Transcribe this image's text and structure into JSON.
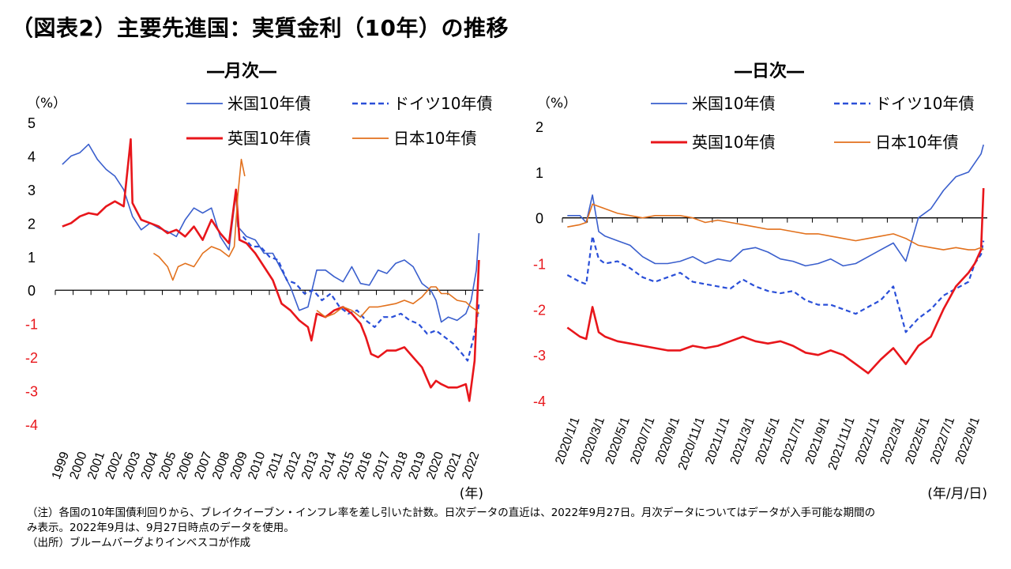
{
  "title": "（図表2）主要先進国：実質金利（10年）の推移",
  "notes": [
    "（注）各国の10年国債利回りから、ブレイクイーブン・インフレ率を差し引いた計数。日次データの直近は、2022年9月27日。月次データについてはデータが入手可能な期間の",
    "み表示。2022年9月は、9月27日時点のデータを使用。",
    "（出所）ブルームバーグよりインベスコが作成"
  ],
  "colors": {
    "us": "#3a5fcd",
    "de": "#2a4fd8",
    "uk": "#e8161b",
    "jp": "#e2711d",
    "negative_tick": "#e8161b"
  },
  "chart_data": [
    {
      "type": "line",
      "subtitle": "―月次―",
      "yunit": "（%）",
      "xunit": "(年)",
      "ylim": [
        -4,
        5
      ],
      "yticks": [
        5,
        4,
        3,
        2,
        1,
        0,
        -1,
        -2,
        -3,
        -4
      ],
      "xticks": [
        "1999",
        "2000",
        "2001",
        "2002",
        "2003",
        "2004",
        "2005",
        "2006",
        "2007",
        "2008",
        "2009",
        "2010",
        "2011",
        "2012",
        "2013",
        "2014",
        "2015",
        "2016",
        "2017",
        "2018",
        "2019",
        "2020",
        "2021",
        "2022"
      ],
      "legend": [
        "米国10年債",
        "ドイツ10年債",
        "英国10年債",
        "日本10年債"
      ],
      "series": [
        {
          "name": "米国10年債",
          "key": "us",
          "style": "solid",
          "x": [
            1999.0,
            1999.5,
            2000.0,
            2000.5,
            2001.0,
            2001.5,
            2002.0,
            2002.5,
            2003.0,
            2003.5,
            2004.0,
            2004.5,
            2005.0,
            2005.5,
            2006.0,
            2006.5,
            2007.0,
            2007.5,
            2008.0,
            2008.5,
            2008.9,
            2009.0,
            2009.5,
            2010.0,
            2010.5,
            2011.0,
            2011.5,
            2012.0,
            2012.5,
            2013.0,
            2013.5,
            2014.0,
            2014.5,
            2015.0,
            2015.5,
            2016.0,
            2016.5,
            2017.0,
            2017.5,
            2018.0,
            2018.5,
            2019.0,
            2019.5,
            2020.0,
            2020.3,
            2020.6,
            2021.0,
            2021.5,
            2022.0,
            2022.3,
            2022.6,
            2022.75
          ],
          "y": [
            3.75,
            4.0,
            4.1,
            4.35,
            3.9,
            3.6,
            3.4,
            3.0,
            2.2,
            1.8,
            2.0,
            1.85,
            1.75,
            1.6,
            2.1,
            2.45,
            2.3,
            2.45,
            1.6,
            1.2,
            2.9,
            1.9,
            1.6,
            1.5,
            1.1,
            1.1,
            0.6,
            0.1,
            -0.6,
            -0.5,
            0.6,
            0.6,
            0.4,
            0.25,
            0.7,
            0.2,
            0.15,
            0.6,
            0.5,
            0.8,
            0.9,
            0.7,
            0.2,
            0.0,
            -0.3,
            -0.95,
            -0.8,
            -0.9,
            -0.7,
            -0.3,
            0.6,
            1.7
          ]
        },
        {
          "name": "ドイツ10年債",
          "key": "de",
          "style": "dash",
          "x": [
            2009.3,
            2009.8,
            2010.3,
            2010.8,
            2011.3,
            2011.8,
            2012.3,
            2012.8,
            2013.3,
            2013.8,
            2014.3,
            2014.8,
            2015.3,
            2015.8,
            2016.3,
            2016.8,
            2017.3,
            2017.8,
            2018.3,
            2018.8,
            2019.3,
            2019.8,
            2020.3,
            2020.8,
            2021.3,
            2021.8,
            2022.1,
            2022.4,
            2022.6,
            2022.75
          ],
          "y": [
            1.6,
            1.3,
            1.3,
            1.0,
            0.9,
            0.3,
            0.2,
            -0.1,
            0.0,
            -0.3,
            -0.1,
            -0.5,
            -0.7,
            -0.6,
            -0.9,
            -1.1,
            -0.8,
            -0.8,
            -0.7,
            -0.9,
            -1.0,
            -1.3,
            -1.2,
            -1.4,
            -1.6,
            -1.9,
            -2.1,
            -1.5,
            -1.0,
            -0.4
          ]
        },
        {
          "name": "英国10年債",
          "key": "uk",
          "style": "solid",
          "x": [
            1999.0,
            1999.5,
            2000.0,
            2000.5,
            2001.0,
            2001.5,
            2002.0,
            2002.5,
            2002.9,
            2003.0,
            2003.5,
            2004.0,
            2004.5,
            2005.0,
            2005.5,
            2006.0,
            2006.5,
            2007.0,
            2007.5,
            2008.0,
            2008.5,
            2008.9,
            2009.1,
            2009.5,
            2010.0,
            2010.5,
            2011.0,
            2011.5,
            2012.0,
            2012.5,
            2013.0,
            2013.2,
            2013.5,
            2014.0,
            2014.5,
            2015.0,
            2015.5,
            2016.0,
            2016.3,
            2016.6,
            2017.0,
            2017.5,
            2018.0,
            2018.5,
            2019.0,
            2019.5,
            2020.0,
            2020.3,
            2020.6,
            2021.0,
            2021.5,
            2022.0,
            2022.2,
            2022.5,
            2022.75
          ],
          "y": [
            1.9,
            2.0,
            2.2,
            2.3,
            2.25,
            2.5,
            2.65,
            2.5,
            4.5,
            2.6,
            2.1,
            2.0,
            1.9,
            1.7,
            1.8,
            1.6,
            1.9,
            1.5,
            2.1,
            1.7,
            1.4,
            3.0,
            1.5,
            1.4,
            1.1,
            0.7,
            0.3,
            -0.4,
            -0.6,
            -0.9,
            -1.1,
            -1.5,
            -0.7,
            -0.8,
            -0.6,
            -0.5,
            -0.7,
            -1.0,
            -1.4,
            -1.9,
            -2.0,
            -1.8,
            -1.8,
            -1.7,
            -2.0,
            -2.3,
            -2.9,
            -2.7,
            -2.8,
            -2.9,
            -2.9,
            -2.8,
            -3.3,
            -2.1,
            0.9
          ]
        },
        {
          "name": "日本10年債",
          "key": "jp",
          "style": "solid",
          "x": [
            2004.2,
            2004.5,
            2005.0,
            2005.3,
            2005.6,
            2006.0,
            2006.5,
            2007.0,
            2007.5,
            2008.0,
            2008.5,
            2008.8,
            2009.0,
            2009.2,
            2009.4
          ],
          "y": [
            1.1,
            1.0,
            0.7,
            0.3,
            0.7,
            0.8,
            0.7,
            1.1,
            1.3,
            1.2,
            1.0,
            1.3,
            2.8,
            3.9,
            3.4
          ]
        },
        {
          "name": "日本10年債",
          "key": "jp",
          "style": "solid",
          "x": [
            2013.5,
            2014.0,
            2014.5,
            2015.0,
            2015.5,
            2016.0,
            2016.5,
            2017.0,
            2017.5,
            2018.0,
            2018.5,
            2019.0,
            2019.5,
            2020.0,
            2020.3,
            2020.6,
            2021.0,
            2021.5,
            2022.0,
            2022.3,
            2022.6,
            2022.75
          ],
          "y": [
            -0.6,
            -0.8,
            -0.7,
            -0.5,
            -0.6,
            -0.8,
            -0.5,
            -0.5,
            -0.45,
            -0.4,
            -0.3,
            -0.4,
            -0.2,
            0.1,
            0.1,
            -0.1,
            -0.1,
            -0.3,
            -0.35,
            -0.5,
            -0.6,
            -0.7
          ]
        }
      ]
    },
    {
      "type": "line",
      "subtitle": "―日次―",
      "yunit": "（%）",
      "xunit": "(年/月/日)",
      "ylim": [
        -4,
        2
      ],
      "yticks": [
        2,
        1,
        0,
        -1,
        -2,
        -3,
        -4
      ],
      "xticks": [
        "2020/1/1",
        "2020/3/1",
        "2020/5/1",
        "2020/7/1",
        "2020/9/1",
        "2020/11/1",
        "2021/1/1",
        "2021/3/1",
        "2021/5/1",
        "2021/7/1",
        "2021/9/1",
        "2021/11/1",
        "2022/1/1",
        "2022/3/1",
        "2022/5/1",
        "2022/7/1",
        "2022/9/1"
      ],
      "legend": [
        "米国10年債",
        "ドイツ10年債",
        "英国10年債",
        "日本10年債"
      ],
      "series": [
        {
          "name": "米国10年債",
          "key": "us",
          "style": "solid",
          "x": [
            0,
            1,
            1.5,
            2,
            2.5,
            3,
            4,
            5,
            6,
            7,
            8,
            9,
            10,
            11,
            12,
            13,
            14,
            15,
            16,
            17,
            18,
            19,
            20,
            21,
            22,
            23,
            24,
            25,
            26,
            27,
            28,
            29,
            30,
            31,
            32,
            32.5,
            33,
            33.2
          ],
          "y": [
            0.05,
            0.05,
            -0.1,
            0.5,
            -0.3,
            -0.4,
            -0.5,
            -0.6,
            -0.85,
            -1.0,
            -1.0,
            -0.95,
            -0.85,
            -1.0,
            -0.9,
            -0.95,
            -0.7,
            -0.65,
            -0.75,
            -0.9,
            -0.95,
            -1.05,
            -1.0,
            -0.9,
            -1.05,
            -1.0,
            -0.85,
            -0.7,
            -0.55,
            -0.95,
            0.0,
            0.2,
            0.6,
            0.9,
            1.0,
            1.2,
            1.4,
            1.6
          ]
        },
        {
          "name": "ドイツ10年債",
          "key": "de",
          "style": "dash",
          "x": [
            0,
            1,
            1.5,
            2,
            2.5,
            3,
            4,
            5,
            6,
            7,
            8,
            9,
            10,
            11,
            12,
            13,
            14,
            15,
            16,
            17,
            18,
            19,
            20,
            21,
            22,
            23,
            24,
            25,
            26,
            27,
            28,
            29,
            30,
            31,
            32,
            32.5,
            33,
            33.2
          ],
          "y": [
            -1.25,
            -1.4,
            -1.45,
            -0.4,
            -0.9,
            -1.0,
            -0.95,
            -1.1,
            -1.3,
            -1.4,
            -1.3,
            -1.2,
            -1.4,
            -1.45,
            -1.5,
            -1.55,
            -1.35,
            -1.5,
            -1.6,
            -1.65,
            -1.6,
            -1.8,
            -1.9,
            -1.9,
            -2.0,
            -2.1,
            -1.95,
            -1.8,
            -1.5,
            -2.5,
            -2.2,
            -2.0,
            -1.7,
            -1.55,
            -1.4,
            -1.0,
            -0.8,
            -0.5
          ]
        },
        {
          "name": "英国10年債",
          "key": "uk",
          "style": "solid",
          "x": [
            0,
            1,
            1.5,
            2,
            2.5,
            3,
            4,
            5,
            6,
            7,
            8,
            9,
            10,
            11,
            12,
            13,
            14,
            15,
            16,
            17,
            18,
            19,
            20,
            21,
            22,
            23,
            24,
            25,
            26,
            27,
            28,
            29,
            30,
            31,
            32,
            32.5,
            33,
            33.2
          ],
          "y": [
            -2.4,
            -2.6,
            -2.65,
            -1.95,
            -2.5,
            -2.6,
            -2.7,
            -2.75,
            -2.8,
            -2.85,
            -2.9,
            -2.9,
            -2.8,
            -2.85,
            -2.8,
            -2.7,
            -2.6,
            -2.7,
            -2.75,
            -2.7,
            -2.8,
            -2.95,
            -3.0,
            -2.9,
            -3.0,
            -3.2,
            -3.4,
            -3.1,
            -2.85,
            -3.2,
            -2.8,
            -2.6,
            -2.0,
            -1.5,
            -1.2,
            -1.0,
            -0.7,
            0.65
          ]
        },
        {
          "name": "日本10年債",
          "key": "jp",
          "style": "solid",
          "x": [
            0,
            1,
            1.5,
            2,
            2.5,
            3,
            4,
            5,
            6,
            7,
            8,
            9,
            10,
            11,
            12,
            13,
            14,
            15,
            16,
            17,
            18,
            19,
            20,
            21,
            22,
            23,
            24,
            25,
            26,
            27,
            28,
            29,
            30,
            31,
            32,
            32.5,
            33,
            33.2
          ],
          "y": [
            -0.2,
            -0.15,
            -0.1,
            0.3,
            0.25,
            0.2,
            0.1,
            0.05,
            0.0,
            0.05,
            0.05,
            0.05,
            0.0,
            -0.1,
            -0.05,
            -0.1,
            -0.15,
            -0.2,
            -0.25,
            -0.25,
            -0.3,
            -0.35,
            -0.35,
            -0.4,
            -0.45,
            -0.5,
            -0.45,
            -0.4,
            -0.35,
            -0.45,
            -0.6,
            -0.65,
            -0.7,
            -0.65,
            -0.7,
            -0.7,
            -0.65,
            -0.7
          ]
        }
      ]
    }
  ]
}
